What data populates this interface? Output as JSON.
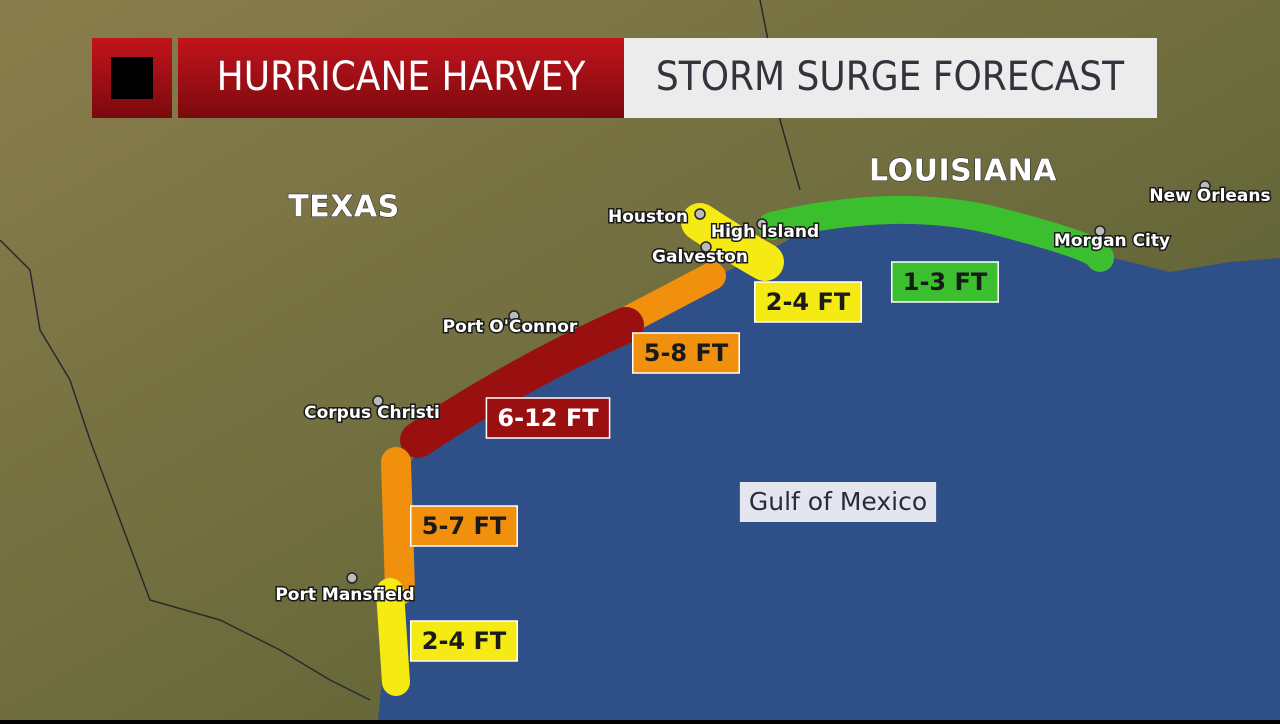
{
  "header": {
    "title": "HURRICANE HARVEY",
    "subtitle": "STORM SURGE FORECAST"
  },
  "regions": [
    "TEXAS",
    "LOUISIANA"
  ],
  "cities": [
    "Houston",
    "High Island",
    "Galveston",
    "Port O'Connor",
    "Corpus Christi",
    "Port Mansfield",
    "Morgan City",
    "New Orleans"
  ],
  "surge_zones": [
    {
      "label": "1-3 FT",
      "color": "#3cbf2e"
    },
    {
      "label": "2-4 FT",
      "color": "#f5ea14"
    },
    {
      "label": "5-8 FT",
      "color": "#f0900c"
    },
    {
      "label": "6-12 FT",
      "color": "#9a1010"
    },
    {
      "label": "5-7 FT",
      "color": "#f0900c"
    },
    {
      "label": "2-4 FT",
      "color": "#f5ea14"
    }
  ],
  "water": "Gulf of Mexico"
}
